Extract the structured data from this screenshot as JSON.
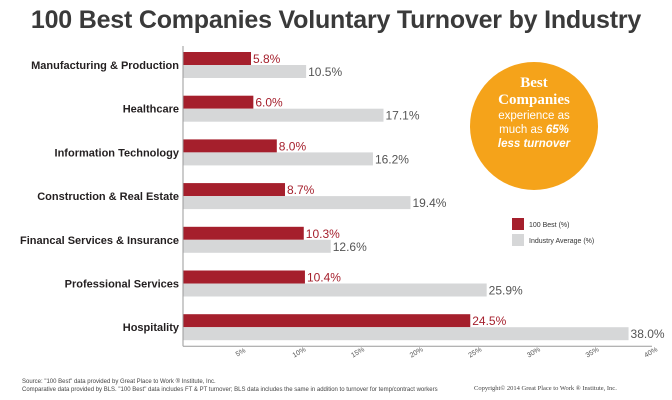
{
  "title": "100 Best Companies Voluntary Turnover by Industry",
  "chart_data": {
    "type": "bar",
    "orientation": "horizontal",
    "title": "100 Best Companies Voluntary Turnover by Industry",
    "categories": [
      "Manufacturing & Production",
      "Healthcare",
      "Information Technology",
      "Construction & Real Estate",
      "Financal Services & Insurance",
      "Professional Services",
      "Hospitality"
    ],
    "series": [
      {
        "name": "100 Best (%)",
        "color": "#a51f2c",
        "values": [
          5.8,
          6.0,
          8.0,
          8.7,
          10.3,
          10.4,
          24.5
        ],
        "labels": [
          "5.8%",
          "6.0%",
          "8.0%",
          "8.7%",
          "10.3%",
          "10.4%",
          "24.5%"
        ]
      },
      {
        "name": "Industry Average (%)",
        "color": "#d6d7d8",
        "values": [
          10.5,
          17.1,
          16.2,
          19.4,
          12.6,
          25.9,
          38.0
        ],
        "labels": [
          "10.5%",
          "17.1%",
          "16.2%",
          "19.4%",
          "12.6%",
          "25.9%",
          "38.0%"
        ]
      }
    ],
    "xlim": [
      0,
      40
    ],
    "xticks": [
      5,
      10,
      15,
      20,
      25,
      30,
      35,
      40
    ],
    "xtick_labels": [
      "5%",
      "10%",
      "15%",
      "20%",
      "25%",
      "30%",
      "35%",
      "40%"
    ],
    "xlabel": "",
    "ylabel": "",
    "legend_position": "right",
    "grid": false
  },
  "callout": {
    "line1": "Best",
    "line2": "Companies",
    "line3": "experience as",
    "line4_prefix": "much as ",
    "line4_emphasis": "65%",
    "line5": "less turnover"
  },
  "footer": {
    "source1": "Source: \"100 Best\" data provided by Great Place to Work ® Institute, Inc.",
    "source2": "Comparative data provided by BLS. \"100 Best\" data includes FT & PT turnover; BLS data includes the same in addition to turnover for temp/contract workers",
    "copyright": "Copyright© 2014 Great Place to Work ® Institute, Inc."
  }
}
